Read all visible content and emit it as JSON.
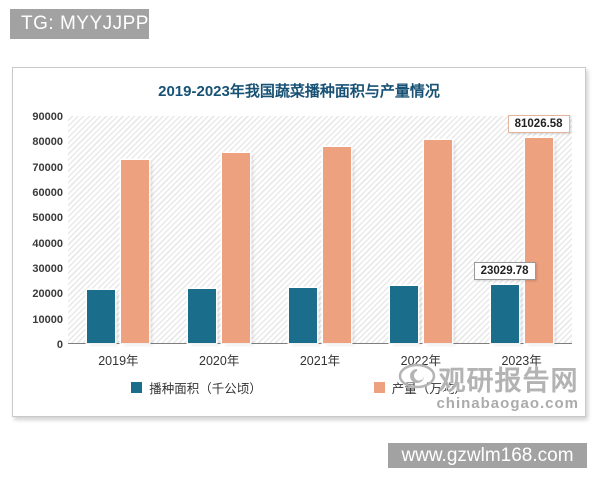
{
  "banners": {
    "top": "TG: MYYJJPP",
    "bottom": "www.gzwlm168.com"
  },
  "watermark": {
    "site_name": "观研报告网",
    "domain": "chinabaogao.com"
  },
  "chart_data": {
    "type": "bar",
    "title": "2019-2023年我国蔬菜播种面积与产量情况",
    "title_color": "#175275",
    "categories": [
      "2019年",
      "2020年",
      "2021年",
      "2022年",
      "2023年"
    ],
    "series": [
      {
        "name": "播种面积（千公顷）",
        "color": "#1b6d8c",
        "values": [
          20900,
          21400,
          21900,
          22400,
          23029.78
        ]
      },
      {
        "name": "产量（万吨）",
        "color": "#eda17e",
        "values": [
          72100,
          74900,
          77500,
          80000,
          81026.58
        ]
      }
    ],
    "data_labels": [
      {
        "series": "产量（万吨）",
        "category": "2023年",
        "text": "81026.58",
        "border": "#e2b49c"
      },
      {
        "series": "播种面积（千公顷）",
        "category": "2023年",
        "text": "23029.78",
        "border": "#999999"
      }
    ],
    "ylim": [
      0,
      90000
    ],
    "y_ticks": [
      0,
      10000,
      20000,
      30000,
      40000,
      50000,
      60000,
      70000,
      80000,
      90000
    ],
    "grid": false,
    "legend_position": "bottom",
    "plot_background": "diagonal-hatch"
  }
}
